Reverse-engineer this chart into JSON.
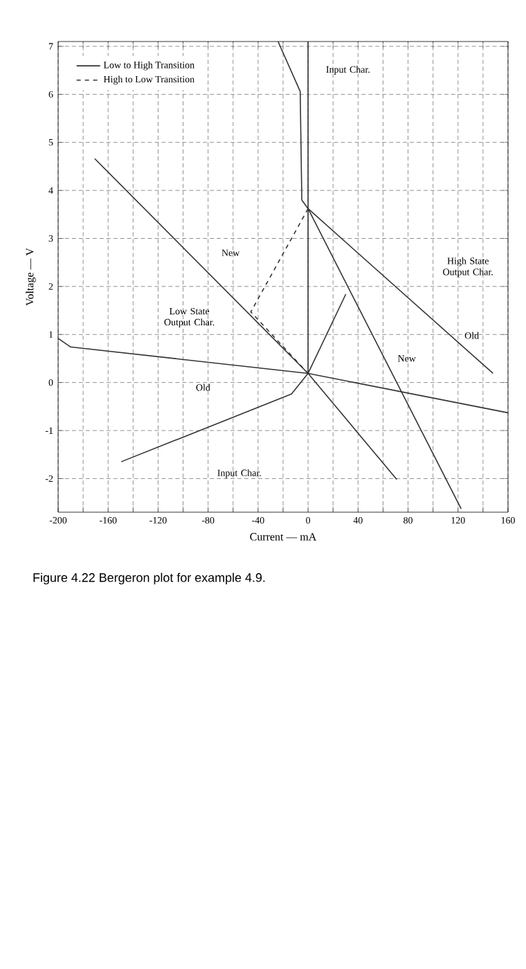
{
  "chart_data": {
    "type": "line",
    "xlabel": "Current — mA",
    "ylabel": "Voltage — V",
    "xlim": [
      -200,
      160
    ],
    "ylim": [
      -2.7,
      7.1
    ],
    "xticks": [
      -200,
      {
        "value": -180,
        "label": null
      },
      -160,
      {
        "value": -140,
        "label": null
      },
      -120,
      {
        "value": -100,
        "label": null
      },
      -80,
      {
        "value": -60,
        "label": null
      },
      -40,
      {
        "value": -20,
        "label": null
      },
      0,
      {
        "value": 20,
        "label": null
      },
      40,
      {
        "value": 60,
        "label": null
      },
      80,
      {
        "value": 100,
        "label": null
      },
      120,
      {
        "value": 140,
        "label": null
      },
      160
    ],
    "yticks": [
      -2,
      -1,
      0,
      1,
      2,
      3,
      4,
      5,
      6,
      7
    ],
    "grid": true,
    "legend": "top left",
    "series": [
      {
        "name": "Low to High Transition",
        "color": "#333333",
        "line_style": "solid",
        "x": [
          0,
          30.2
        ],
        "values": [
          0.19,
          1.84
        ]
      },
      {
        "name": "High to Low Transition",
        "color": "#333333",
        "line_style": "dashed",
        "x": [
          0,
          -45.8,
          0
        ],
        "values": [
          3.62,
          1.47,
          0.19
        ]
      },
      {
        "color": "#333333",
        "line_style": "solid",
        "x": [
          -200,
          -190,
          0,
          160
        ],
        "values": [
          0.92,
          0.74,
          0.19,
          -0.63
        ]
      },
      {
        "color": "#333333",
        "line_style": "solid",
        "x": [
          -149.5,
          -13.3,
          0,
          0
        ],
        "values": [
          -1.65,
          -0.24,
          0.19,
          7.1
        ]
      },
      {
        "color": "#333333",
        "line_style": "solid",
        "x": [
          -170.7,
          0,
          71
        ],
        "values": [
          4.66,
          0.19,
          -2.02
        ]
      },
      {
        "color": "#333333",
        "line_style": "solid",
        "x": [
          -24,
          -6.3,
          -5,
          0,
          122.5
        ],
        "values": [
          7.1,
          6.06,
          3.8,
          3.62,
          -2.63
        ]
      },
      {
        "color": "#333333",
        "line_style": "solid",
        "x": [
          0,
          148
        ],
        "values": [
          3.62,
          0.19
        ]
      }
    ],
    "annotations": [
      "Input Char.",
      "Low State Output Char.",
      "New",
      "Old",
      "Input Char.",
      "New",
      "High State Output Char.",
      "Old",
      "Figure 4.22  Bergeron plot for example 4.9."
    ]
  }
}
